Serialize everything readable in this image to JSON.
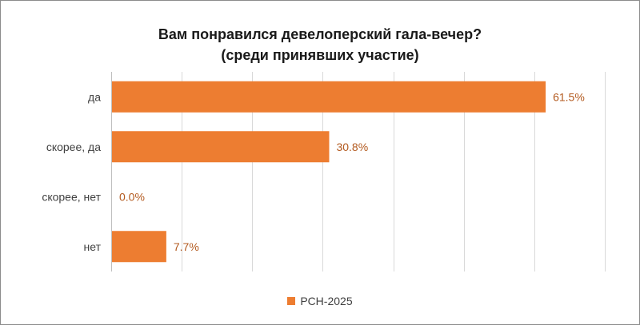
{
  "chart_data": {
    "type": "bar",
    "orientation": "horizontal",
    "title": "Вам понравился девелоперский гала-вечер?",
    "subtitle": "(среди принявших участие)",
    "categories": [
      "да",
      "скорее, да",
      "скорее, нет",
      "нет"
    ],
    "series": [
      {
        "name": "РСН-2025",
        "values": [
          61.5,
          30.8,
          0.0,
          7.7
        ],
        "labels": [
          "61.5%",
          "30.8%",
          "0.0%",
          "7.7%"
        ],
        "color": "#ed7d31"
      }
    ],
    "xlim": [
      0,
      70
    ],
    "grid": true,
    "legend": "bottom"
  }
}
